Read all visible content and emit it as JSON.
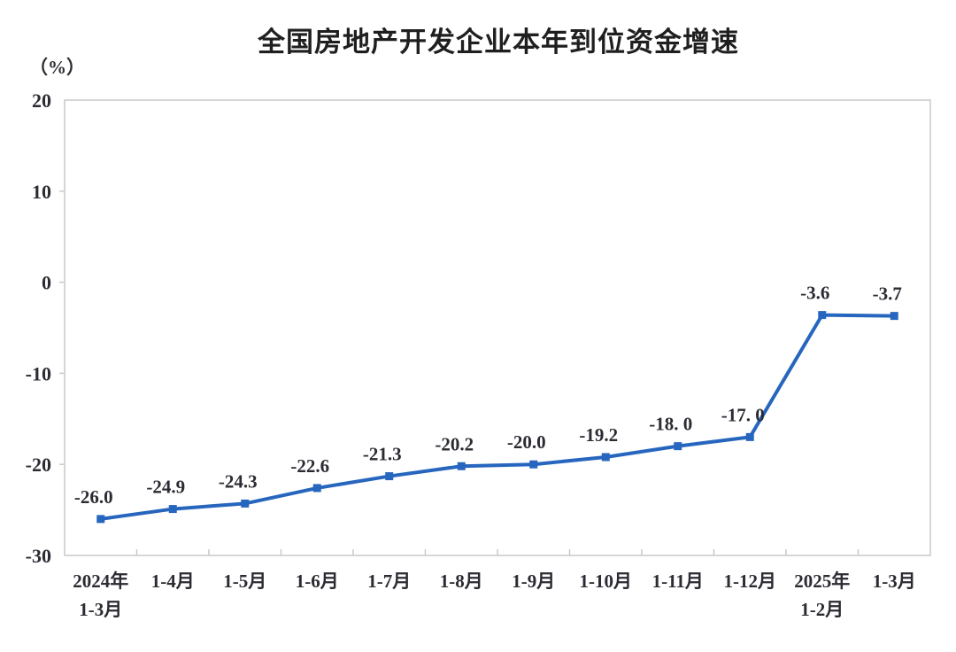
{
  "chart_data": {
    "type": "line",
    "title": "全国房地产开发企业本年到位资金增速",
    "unit_label": "（%）",
    "categories": [
      "2024年\n1-3月",
      "1-4月",
      "1-5月",
      "1-6月",
      "1-7月",
      "1-8月",
      "1-9月",
      "1-10月",
      "1-11月",
      "1-12月",
      "2025年\n1-2月",
      "1-3月"
    ],
    "values": [
      -26.0,
      -24.9,
      -24.3,
      -22.6,
      -21.3,
      -20.2,
      -20.0,
      -19.2,
      -18.0,
      -17.0,
      -3.6,
      -3.7
    ],
    "data_labels": [
      "-26.0",
      "-24.9",
      "-24.3",
      "-22.6",
      "-21.3",
      "-20.2",
      "-20.0",
      "-19.2",
      "-18. 0",
      "-17. 0",
      "-3.6",
      "-3.7"
    ],
    "ylim": [
      -30,
      20
    ],
    "yticks": [
      20,
      10,
      0,
      -10,
      -20,
      -30
    ],
    "ytick_interval": 10,
    "grid": false,
    "legend": "none",
    "line_color": "#2766be",
    "marker": "square",
    "axis_color": "#c9c9c9",
    "text_color": "#2b2b33"
  }
}
